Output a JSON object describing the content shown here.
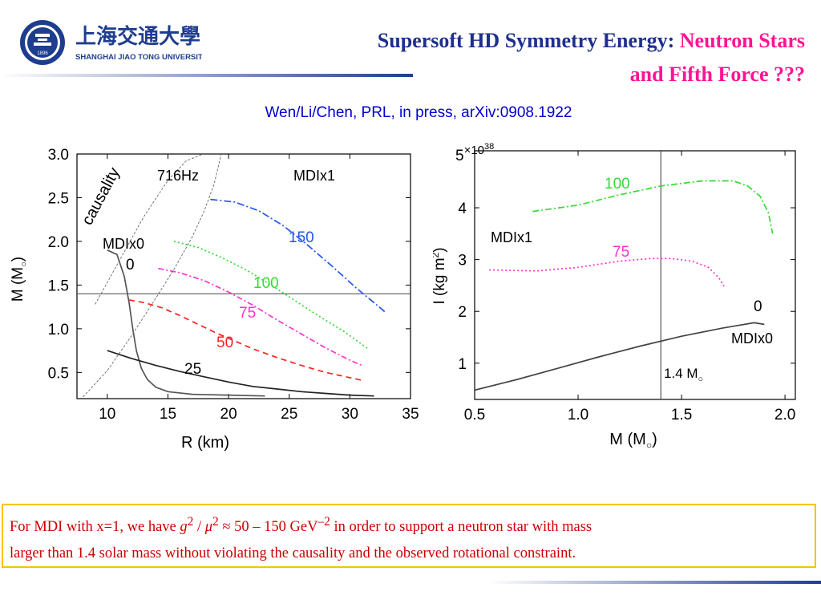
{
  "header": {
    "title_part1": "Supersoft HD Symmetry Energy: ",
    "title_part2": "Neutron Stars",
    "title_line2": "and Fifth Force ???",
    "citation": "Wen/Li/Chen, PRL, in press, arXiv:0908.1922",
    "logo_text": "SHANGHAI JIAO TONG UNIVERSITY",
    "logo_chinese": "上海交通大學",
    "logo_seal_year": "1896"
  },
  "chart_data": [
    {
      "type": "line",
      "xlabel": "R (km)",
      "ylabel": "M (M",
      "ylabel_sub": "○",
      "ylabel_close": ")",
      "xlim": [
        7.5,
        35
      ],
      "ylim": [
        0.2,
        3.0
      ],
      "xticks": [
        10,
        15,
        20,
        25,
        30,
        35
      ],
      "xticklabels": [
        "10",
        "15",
        "20",
        "25",
        "30",
        "35"
      ],
      "yticks": [
        0.5,
        1.0,
        1.5,
        2.0,
        2.5,
        3.0
      ],
      "yticklabels": [
        "0.5",
        "1.0",
        "1.5",
        "2.0",
        "2.5",
        "3.0"
      ],
      "hline": 1.4,
      "annotations": [
        "causality",
        "716Hz",
        "MDIx1",
        "MDIx0"
      ],
      "series": [
        {
          "name": "0",
          "color": "#555555",
          "dash": "",
          "x": [
            10,
            10.8,
            11.4,
            11.8,
            12.1,
            12.4,
            12.8,
            13.3,
            14.0,
            15.0,
            17.0,
            20.0,
            23.0
          ],
          "y": [
            1.9,
            1.85,
            1.6,
            1.3,
            1.0,
            0.75,
            0.55,
            0.42,
            0.33,
            0.28,
            0.25,
            0.24,
            0.23
          ]
        },
        {
          "name": "25",
          "color": "#222222",
          "dash": "",
          "x": [
            10,
            12,
            14,
            16,
            18,
            20,
            22,
            24,
            26,
            28,
            30,
            32
          ],
          "y": [
            0.75,
            0.66,
            0.58,
            0.51,
            0.45,
            0.39,
            0.34,
            0.31,
            0.28,
            0.26,
            0.24,
            0.23
          ]
        },
        {
          "name": "50",
          "color": "#ff2222",
          "dash": "7,5",
          "x": [
            11.8,
            13,
            14.5,
            16,
            17.5,
            19,
            20.5,
            22,
            24,
            26,
            28,
            31
          ],
          "y": [
            1.33,
            1.3,
            1.24,
            1.15,
            1.05,
            0.95,
            0.86,
            0.77,
            0.67,
            0.58,
            0.5,
            0.41
          ]
        },
        {
          "name": "75",
          "color": "#ff33cc",
          "dash": "7,3,2,3",
          "x": [
            14.2,
            16,
            18,
            20,
            22,
            24,
            26,
            28,
            30,
            31
          ],
          "y": [
            1.69,
            1.64,
            1.55,
            1.42,
            1.27,
            1.1,
            0.94,
            0.78,
            0.64,
            0.58
          ]
        },
        {
          "name": "100",
          "color": "#33dd33",
          "dash": "2,3",
          "x": [
            15.5,
            17.5,
            19.5,
            21.5,
            23.5,
            25.5,
            27.5,
            29.5,
            31.5
          ],
          "y": [
            2.0,
            1.93,
            1.81,
            1.67,
            1.5,
            1.32,
            1.14,
            0.97,
            0.77
          ]
        },
        {
          "name": "150",
          "color": "#2255ee",
          "dash": "9,3,2,3",
          "x": [
            18.5,
            20.5,
            22.5,
            24.5,
            26.5,
            28.5,
            30.5,
            32.5,
            33.0
          ],
          "y": [
            2.48,
            2.45,
            2.35,
            2.18,
            1.96,
            1.72,
            1.47,
            1.24,
            1.18
          ]
        },
        {
          "name": "causality",
          "color": "#666666",
          "dash": "3,2",
          "x": [
            9.0,
            11.0,
            13.0,
            15.0,
            16.5,
            17.9
          ],
          "y": [
            1.28,
            1.78,
            2.28,
            2.7,
            2.92,
            3.0
          ]
        },
        {
          "name": "716Hz",
          "color": "#666666",
          "dash": "3,2",
          "x": [
            8.0,
            10.0,
            12.0,
            14.0,
            15.5,
            17.0,
            18.0,
            18.8,
            19.4
          ],
          "y": [
            0.22,
            0.52,
            0.92,
            1.35,
            1.68,
            2.05,
            2.35,
            2.65,
            3.0
          ]
        }
      ]
    },
    {
      "type": "line",
      "xlabel": "M (M",
      "xlabel_sub": "○",
      "xlabel_close": ")",
      "ylabel": "I (kg m",
      "ylabel_sup": "2",
      "ylabel_close": ")",
      "exponent": "×10",
      "exponent_base": "5",
      "exponent_power": "38",
      "xlim": [
        0.5,
        2.05
      ],
      "ylim": [
        0.3,
        5.1
      ],
      "xticks": [
        0.5,
        1.0,
        1.5,
        2.0
      ],
      "xticklabels": [
        "0.5",
        "1.0",
        "1.5",
        "2.0"
      ],
      "yticks": [
        1,
        2,
        3,
        4
      ],
      "yticklabels": [
        "1",
        "2",
        "3",
        "4"
      ],
      "vline": 1.4,
      "vline_label": "1.4 M",
      "vline_label_sub": "○",
      "annotations": [
        "MDIx1",
        "MDIx0"
      ],
      "series": [
        {
          "name": "0",
          "color": "#444444",
          "dash": "",
          "x": [
            0.5,
            0.7,
            0.9,
            1.1,
            1.3,
            1.5,
            1.7,
            1.85,
            1.9
          ],
          "y": [
            0.48,
            0.68,
            0.9,
            1.12,
            1.33,
            1.52,
            1.68,
            1.78,
            1.75
          ]
        },
        {
          "name": "75",
          "color": "#ff33cc",
          "dash": "2,3",
          "x": [
            0.57,
            0.8,
            1.0,
            1.2,
            1.35,
            1.45,
            1.55,
            1.63,
            1.68,
            1.71
          ],
          "y": [
            2.8,
            2.78,
            2.85,
            2.97,
            3.02,
            3.02,
            2.97,
            2.85,
            2.65,
            2.45
          ]
        },
        {
          "name": "100",
          "color": "#33dd33",
          "dash": "8,3,2,3",
          "x": [
            0.78,
            1.0,
            1.2,
            1.4,
            1.6,
            1.75,
            1.82,
            1.88,
            1.92,
            1.94
          ],
          "y": [
            3.93,
            4.05,
            4.25,
            4.42,
            4.52,
            4.52,
            4.42,
            4.22,
            3.9,
            3.5
          ]
        }
      ]
    }
  ],
  "note": {
    "line1_prefix": "For MDI with x=1, we have ",
    "math_g": "g",
    "math_g_sup": "2",
    "math_slash": " / ",
    "math_mu": "μ",
    "math_mu_sup": "2",
    "math_range": " ≈ 50 – 150 GeV",
    "math_unit_sup": "–2",
    "line1_suffix": "  in order to support a neutron star with mass",
    "line2": "larger than 1.4 solar mass without violating the causality and the observed rotational constraint."
  },
  "colors": {
    "title_blue": "#1f2f8f",
    "title_pink": "#ff1493",
    "citation_blue": "#0000cc",
    "note_red": "#cc0000",
    "note_border": "#f5c400"
  }
}
